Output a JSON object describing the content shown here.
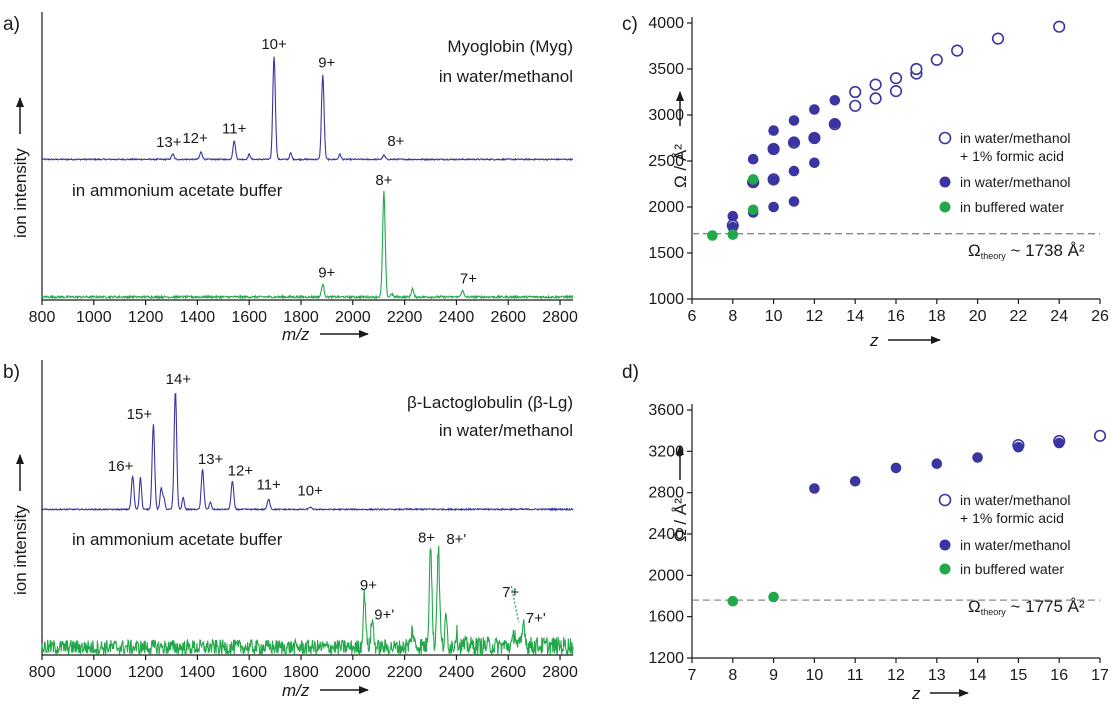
{
  "colors": {
    "blue": "#3a35a0",
    "green": "#22a84a",
    "dash": "#888888",
    "text": "#1a1a1a"
  },
  "chart_data": [
    {
      "panel": "a)",
      "type": "line",
      "xlabel": "m/z",
      "ylabel": "ion intensity",
      "xlim": [
        800,
        2850
      ],
      "x_ticks": [
        800,
        1000,
        1200,
        1400,
        1600,
        1800,
        2000,
        2200,
        2400,
        2600,
        2800
      ],
      "series": [
        {
          "condition": "in water/methanol",
          "name": "Myoglobin (Myg)",
          "peaks": [
            {
              "label": "13+",
              "mz": 1305,
              "rel": 0.05
            },
            {
              "label": "12+",
              "mz": 1414,
              "rel": 0.07
            },
            {
              "label": "11+",
              "mz": 1542,
              "rel": 0.18
            },
            {
              "label": "10+",
              "mz": 1696,
              "rel": 1.0
            },
            {
              "label": "9+",
              "mz": 1884,
              "rel": 0.82
            },
            {
              "label": "8+",
              "mz": 2120,
              "rel": 0.04
            }
          ]
        },
        {
          "condition": "in ammonium acetate buffer",
          "peaks": [
            {
              "label": "9+",
              "mz": 1884,
              "rel": 0.12
            },
            {
              "label": "8+",
              "mz": 2120,
              "rel": 1.0
            },
            {
              "label": "7+",
              "mz": 2423,
              "rel": 0.06
            }
          ]
        }
      ]
    },
    {
      "panel": "b)",
      "type": "line",
      "xlabel": "m/z",
      "ylabel": "ion intensity",
      "xlim": [
        800,
        2850
      ],
      "x_ticks": [
        800,
        1000,
        1200,
        1400,
        1600,
        1800,
        2000,
        2200,
        2400,
        2600,
        2800
      ],
      "series": [
        {
          "condition": "in water/methanol",
          "name": "β-Lactoglobulin (β-Lg)",
          "peaks": [
            {
              "label": "16+",
              "mz": 1150,
              "rel": 0.28
            },
            {
              "label": "15+",
              "mz": 1230,
              "rel": 0.72
            },
            {
              "label": "14+",
              "mz": 1315,
              "rel": 1.0
            },
            {
              "label": "13+",
              "mz": 1420,
              "rel": 0.34
            },
            {
              "label": "12+",
              "mz": 1535,
              "rel": 0.24
            },
            {
              "label": "11+",
              "mz": 1675,
              "rel": 0.09
            },
            {
              "label": "10+",
              "mz": 1835,
              "rel": 0.02
            }
          ]
        },
        {
          "condition": "in ammonium acetate buffer",
          "peaks": [
            {
              "label": "9+",
              "mz": 2045,
              "rel": 0.48
            },
            {
              "label": "9+'",
              "mz": 2075,
              "rel": 0.25
            },
            {
              "label": "8+",
              "mz": 2300,
              "rel": 0.95
            },
            {
              "label": "8+'",
              "mz": 2330,
              "rel": 0.9
            },
            {
              "label": "7+",
              "mz": 2625,
              "rel": 0.12
            },
            {
              "label": "7+'",
              "mz": 2660,
              "rel": 0.22
            }
          ]
        }
      ]
    },
    {
      "panel": "c)",
      "type": "scatter",
      "xlabel": "z",
      "ylabel": "Ω / Å²",
      "xlim": [
        6,
        26
      ],
      "ylim": [
        1000,
        4000
      ],
      "x_ticks": [
        6,
        8,
        10,
        12,
        14,
        16,
        18,
        20,
        22,
        24,
        26
      ],
      "y_ticks": [
        1000,
        1500,
        2000,
        2500,
        3000,
        3500,
        4000
      ],
      "reference_line": {
        "y": 1710,
        "label": "Ω",
        "label_sub": "theory",
        "label_value": " ~ 1738 Å²"
      },
      "series": [
        {
          "name": "in water/methanol",
          "name2": "+ 1% formic acid",
          "marker": "open-circle",
          "points": [
            [
              8,
              1800
            ],
            [
              9,
              2270
            ],
            [
              10,
              2300
            ],
            [
              10,
              2630
            ],
            [
              11,
              2700
            ],
            [
              12,
              2750
            ],
            [
              13,
              2900
            ],
            [
              14,
              3100
            ],
            [
              14,
              3250
            ],
            [
              15,
              3180
            ],
            [
              15,
              3330
            ],
            [
              16,
              3260
            ],
            [
              16,
              3400
            ],
            [
              17,
              3450
            ],
            [
              17,
              3500
            ],
            [
              18,
              3600
            ],
            [
              19,
              3700
            ],
            [
              21,
              3830
            ],
            [
              24,
              3960
            ]
          ]
        },
        {
          "name": "in water/methanol",
          "marker": "filled-circle",
          "points": [
            [
              8,
              1780
            ],
            [
              8,
              1900
            ],
            [
              9,
              1940
            ],
            [
              9,
              2270
            ],
            [
              9,
              2520
            ],
            [
              10,
              2000
            ],
            [
              10,
              2290
            ],
            [
              10,
              2630
            ],
            [
              10,
              2830
            ],
            [
              11,
              2060
            ],
            [
              11,
              2390
            ],
            [
              11,
              2710
            ],
            [
              11,
              2940
            ],
            [
              12,
              2480
            ],
            [
              12,
              2750
            ],
            [
              12,
              3060
            ],
            [
              13,
              2910
            ],
            [
              13,
              3160
            ]
          ]
        },
        {
          "name": "in buffered water",
          "marker": "filled-circle",
          "points": [
            [
              7,
              1690
            ],
            [
              8,
              1700
            ],
            [
              9,
              1970
            ],
            [
              9,
              2300
            ]
          ]
        }
      ]
    },
    {
      "panel": "d)",
      "type": "scatter",
      "xlabel": "z",
      "ylabel": "Ω / Å²",
      "xlim": [
        7,
        17
      ],
      "ylim": [
        1200,
        3600
      ],
      "x_ticks": [
        7,
        8,
        9,
        10,
        11,
        12,
        13,
        14,
        15,
        16,
        17
      ],
      "y_ticks": [
        1200,
        1600,
        2000,
        2400,
        2800,
        3200,
        3600
      ],
      "reference_line": {
        "y": 1760,
        "label": "Ω",
        "label_sub": "theory",
        "label_value": " ~ 1775 Å²"
      },
      "series": [
        {
          "name": "in water/methanol",
          "name2": "+ 1% formic acid",
          "marker": "open-circle",
          "points": [
            [
              15,
              3260
            ],
            [
              16,
              3300
            ],
            [
              17,
              3350
            ]
          ]
        },
        {
          "name": "in water/methanol",
          "marker": "filled-circle",
          "points": [
            [
              10,
              2840
            ],
            [
              11,
              2910
            ],
            [
              12,
              3040
            ],
            [
              13,
              3080
            ],
            [
              14,
              3140
            ],
            [
              15,
              3240
            ],
            [
              16,
              3280
            ]
          ]
        },
        {
          "name": "in buffered water",
          "marker": "filled-circle",
          "points": [
            [
              8,
              1750
            ],
            [
              9,
              1790
            ]
          ]
        }
      ]
    }
  ]
}
